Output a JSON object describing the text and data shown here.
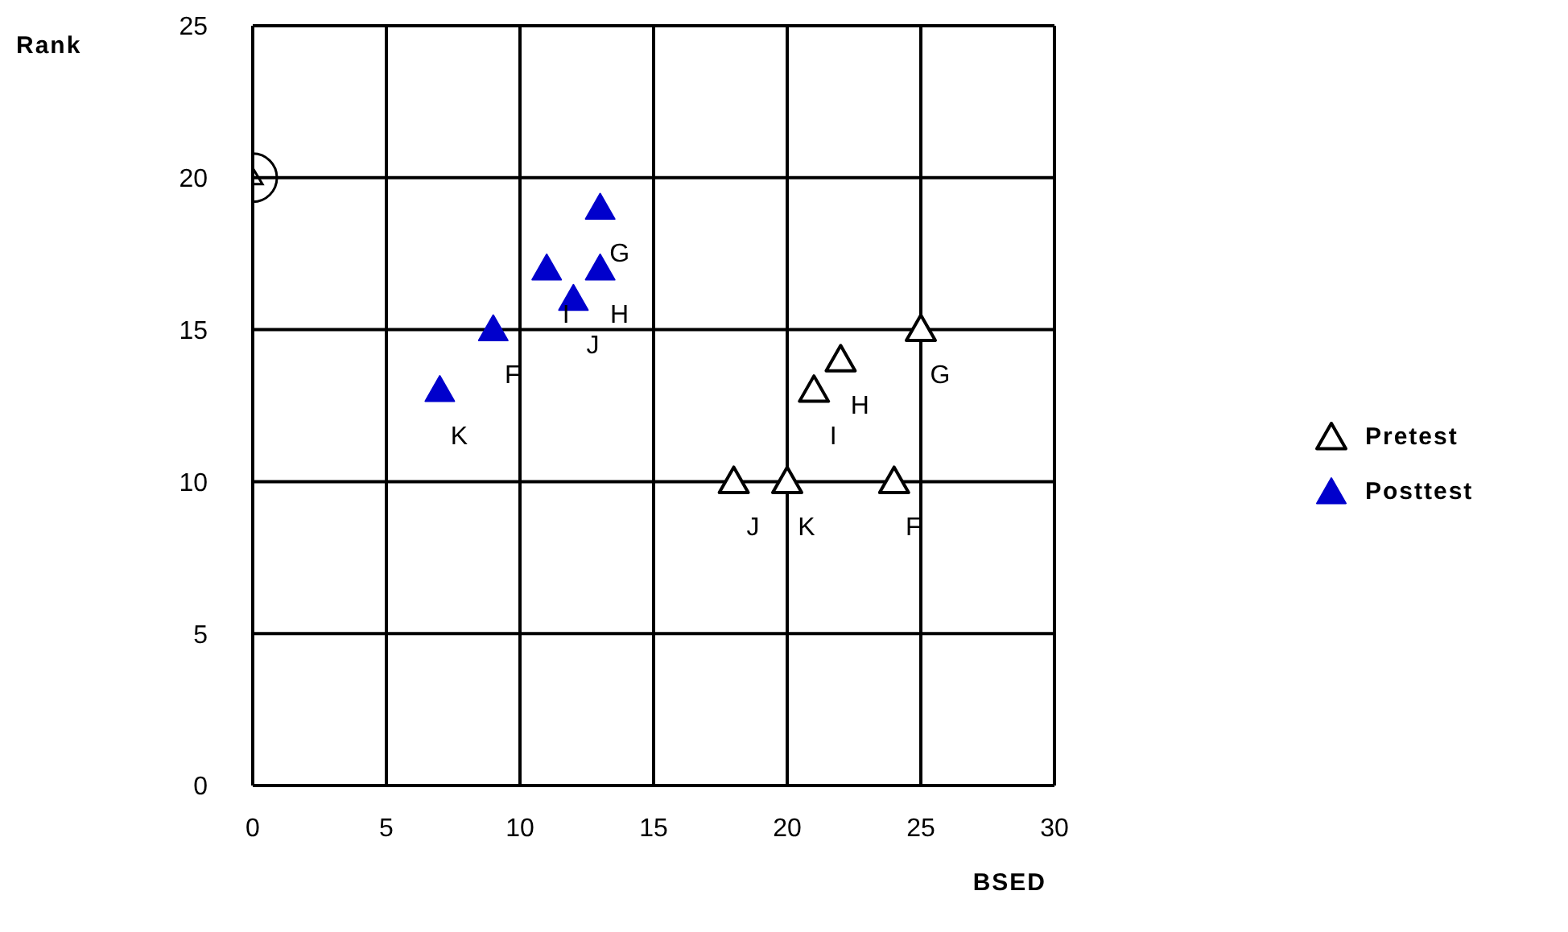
{
  "chart_data": {
    "type": "scatter",
    "xlabel": "BSED",
    "ylabel": "Rank",
    "xlim": [
      0,
      30
    ],
    "xticks": [
      0,
      5,
      10,
      15,
      20,
      25,
      30
    ],
    "ylim": [
      0,
      25
    ],
    "yticks": [
      0,
      5,
      10,
      15,
      20,
      25
    ],
    "grid": true,
    "legend": "right",
    "marker": "triangle",
    "series": [
      {
        "name": "Pretest",
        "color": "#000000",
        "x": [
          18,
          20,
          24,
          21,
          22,
          25
        ],
        "values": [
          10,
          10,
          10,
          13,
          14,
          15
        ]
      },
      {
        "name": "Posttest",
        "color": "#0000cc",
        "x": [
          7,
          9,
          11,
          12,
          13,
          13
        ],
        "values": [
          13,
          15,
          17,
          16,
          17,
          19
        ]
      },
      {
        "color": "#000000",
        "marker": "circle",
        "x": [
          0
        ],
        "values": [
          20
        ]
      }
    ],
    "annotations": [
      {
        "text": "J",
        "x": 18,
        "y": 10
      },
      {
        "text": "K",
        "x": 20,
        "y": 10
      },
      {
        "text": "F",
        "x": 24,
        "y": 10
      },
      {
        "text": "I",
        "x": 21,
        "y": 13
      },
      {
        "text": "H",
        "x": 22,
        "y": 14
      },
      {
        "text": "G",
        "x": 25,
        "y": 15
      },
      {
        "text": "K",
        "x": 7,
        "y": 13
      },
      {
        "text": "F",
        "x": 9,
        "y": 15
      },
      {
        "text": "I",
        "x": 11,
        "y": 17
      },
      {
        "text": "J",
        "x": 12,
        "y": 16
      },
      {
        "text": "H",
        "x": 13,
        "y": 17
      },
      {
        "text": "G",
        "x": 13,
        "y": 19
      }
    ]
  }
}
